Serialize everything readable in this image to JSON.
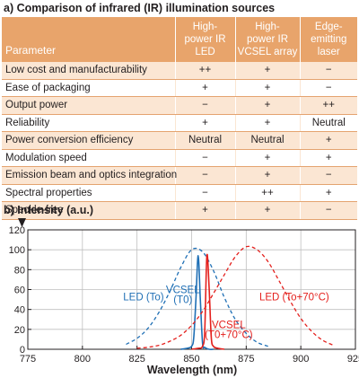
{
  "table": {
    "title": "a) Comparison of infrared (IR) illumination sources",
    "headers": [
      "Parameter",
      "High-power IR LED",
      "High-power IR VCSEL array",
      "Edge-emitting laser"
    ],
    "header_lines": [
      [
        "Parameter"
      ],
      [
        "High-",
        "power IR",
        "LED"
      ],
      [
        "High-",
        "power IR",
        "VCSEL array"
      ],
      [
        "Edge-",
        "emitting",
        "laser"
      ]
    ],
    "rows": [
      [
        "Low cost and manufacturability",
        "++",
        "+",
        "−"
      ],
      [
        "Ease of packaging",
        "+",
        "+",
        "−"
      ],
      [
        "Output power",
        "−",
        "+",
        "++"
      ],
      [
        "Reliability",
        "+",
        "+",
        "Neutral"
      ],
      [
        "Power conversion efficiency",
        "Neutral",
        "Neutral",
        "+"
      ],
      [
        "Modulation speed",
        "−",
        "+",
        "+"
      ],
      [
        "Emission beam and optics integration",
        "−",
        "+",
        "−"
      ],
      [
        "Spectral properties",
        "−",
        "++",
        "+"
      ],
      [
        "Speckle-free",
        "+",
        "+",
        "−"
      ]
    ],
    "colors": {
      "header_bg": "#e8a46b",
      "row_shade": "#fbe6d3",
      "rule": "#e4a36f"
    }
  },
  "chart_data": {
    "type": "line",
    "title": "b) Intensity (a.u.)",
    "xlabel": "Wavelength (nm)",
    "ylabel": "Intensity (a.u.)",
    "xlim": [
      775,
      925
    ],
    "ylim": [
      0,
      120
    ],
    "xticks": [
      775,
      800,
      825,
      850,
      875,
      900,
      925
    ],
    "yticks": [
      0,
      20,
      40,
      60,
      80,
      100,
      120
    ],
    "grid": true,
    "series": [
      {
        "name": "LED (To)",
        "style": "dashed",
        "color": "#1f6fb5",
        "x": [
          820,
          825,
          830,
          835,
          840,
          845,
          850,
          855,
          860,
          865,
          870,
          875,
          880,
          885
        ],
        "y": [
          5,
          11,
          21,
          37,
          58,
          82,
          100,
          98,
          79,
          52,
          30,
          16,
          7,
          3
        ]
      },
      {
        "name": "VCSEL (T0)",
        "style": "solid",
        "color": "#1f6fb5",
        "x": [
          845,
          848,
          850,
          851,
          852,
          853,
          854,
          855,
          856,
          858,
          860
        ],
        "y": [
          0,
          1,
          3,
          12,
          52,
          94,
          50,
          6,
          2,
          0,
          0
        ]
      },
      {
        "name": "LED (To+70°C)",
        "style": "dashed",
        "color": "#e4201d",
        "x": [
          825,
          830,
          835,
          840,
          845,
          850,
          855,
          860,
          865,
          870,
          875,
          880,
          885,
          890,
          895,
          900,
          905,
          910,
          915
        ],
        "y": [
          1,
          2,
          4,
          8,
          14,
          24,
          38,
          56,
          75,
          93,
          103,
          100,
          88,
          69,
          49,
          31,
          18,
          9,
          4
        ]
      },
      {
        "name": "VCSEL (T0+70°C)",
        "style": "solid",
        "color": "#e4201d",
        "x": [
          850,
          853,
          855,
          856,
          857,
          858,
          859,
          860,
          862,
          865
        ],
        "y": [
          0,
          1,
          3,
          18,
          94,
          62,
          12,
          3,
          1,
          0
        ]
      }
    ],
    "annotations": [
      {
        "text": "LED (To)",
        "x": 828,
        "y": 53,
        "color": "#1f6fb5"
      },
      {
        "text": "VCSEL",
        "x": 846,
        "y": 60,
        "color": "#1f6fb5"
      },
      {
        "text": "(T0)",
        "x": 846,
        "y": 50,
        "color": "#1f6fb5"
      },
      {
        "text": "LED (To+70°C)",
        "x": 897,
        "y": 53,
        "color": "#e4201d"
      },
      {
        "text": "VCSEL",
        "x": 867,
        "y": 25,
        "color": "#e4201d"
      },
      {
        "text": "(T0+70°C)",
        "x": 867,
        "y": 15,
        "color": "#e4201d"
      }
    ]
  }
}
